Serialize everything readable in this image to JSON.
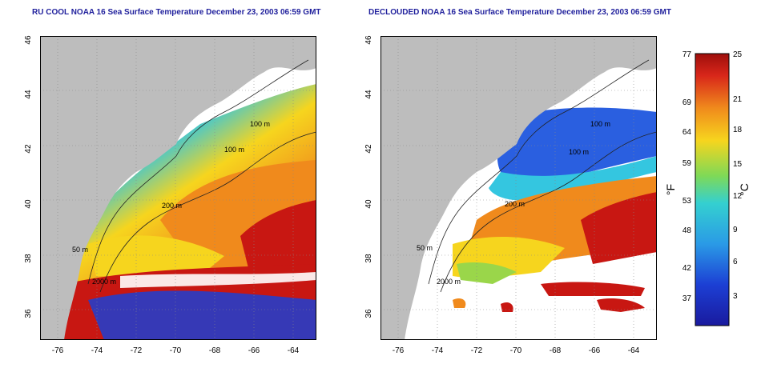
{
  "left_map": {
    "title": "RU COOL NOAA 16 Sea Surface Temperature December 23, 2003 06:59 GMT",
    "lat_ticks": [
      "46",
      "44",
      "42",
      "40",
      "38",
      "36"
    ],
    "lon_ticks": [
      "-76",
      "-74",
      "-72",
      "-70",
      "-68",
      "-66",
      "-64"
    ],
    "contour_labels": [
      "100 m",
      "100 m",
      "200 m",
      "50 m",
      "2000 m"
    ]
  },
  "right_map": {
    "title": "DECLOUDED NOAA 16 Sea Surface Temperature December 23, 2003 06:59 GMT",
    "lat_ticks": [
      "46",
      "44",
      "42",
      "40",
      "38",
      "36"
    ],
    "lon_ticks": [
      "-76",
      "-74",
      "-72",
      "-70",
      "-68",
      "-66",
      "-64"
    ],
    "contour_labels": [
      "100 m",
      "100 m",
      "200 m",
      "50 m",
      "2000 m"
    ]
  },
  "colorbar": {
    "fahrenheit_label": "°F",
    "celsius_label": "°C",
    "fahrenheit_ticks": [
      "77",
      "69",
      "64",
      "59",
      "53",
      "48",
      "42",
      "37"
    ],
    "celsius_ticks": [
      "25",
      "21",
      "18",
      "15",
      "12",
      "9",
      "6",
      "3"
    ]
  },
  "colors": {
    "title": "#1f1f9c",
    "land": "#bdbdbd",
    "no_data": "#ffffff",
    "cold": "#1c3fd4",
    "cool": "#34c6e0",
    "mild": "#9ad64a",
    "warm": "#f6d51e",
    "hot": "#f08a1c",
    "hottest": "#c81712"
  }
}
